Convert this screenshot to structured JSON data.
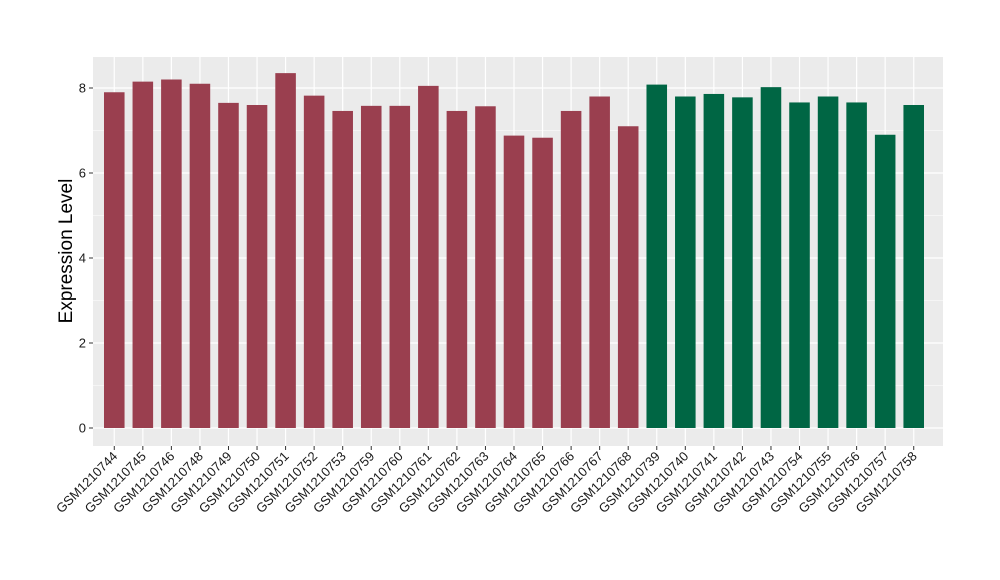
{
  "chart_data": {
    "type": "bar",
    "title": "",
    "xlabel": "",
    "ylabel": "Expression Level",
    "ylim": [
      0,
      8.8
    ],
    "yticks": [
      0,
      2,
      4,
      6,
      8
    ],
    "grid": true,
    "legend": "none",
    "categories": [
      "GSM1210744",
      "GSM1210745",
      "GSM1210746",
      "GSM1210748",
      "GSM1210749",
      "GSM1210750",
      "GSM1210751",
      "GSM1210752",
      "GSM1210753",
      "GSM1210759",
      "GSM1210760",
      "GSM1210761",
      "GSM1210762",
      "GSM1210763",
      "GSM1210764",
      "GSM1210765",
      "GSM1210766",
      "GSM1210767",
      "GSM1210768",
      "GSM1210739",
      "GSM1210740",
      "GSM1210741",
      "GSM1210742",
      "GSM1210743",
      "GSM1210754",
      "GSM1210755",
      "GSM1210756",
      "GSM1210757",
      "GSM1210758"
    ],
    "values": [
      7.9,
      8.15,
      8.2,
      8.1,
      7.65,
      7.6,
      8.35,
      7.82,
      7.46,
      7.58,
      7.58,
      8.05,
      7.46,
      7.57,
      6.88,
      6.83,
      7.46,
      7.8,
      7.1,
      8.08,
      7.8,
      7.86,
      7.78,
      8.02,
      7.66,
      7.8,
      7.66,
      6.9,
      7.6
    ],
    "group_colors": {
      "group1": "#9a3f4f",
      "group2": "#006644"
    },
    "bar_groups": [
      "group1",
      "group1",
      "group1",
      "group1",
      "group1",
      "group1",
      "group1",
      "group1",
      "group1",
      "group1",
      "group1",
      "group1",
      "group1",
      "group1",
      "group1",
      "group1",
      "group1",
      "group1",
      "group1",
      "group2",
      "group2",
      "group2",
      "group2",
      "group2",
      "group2",
      "group2",
      "group2",
      "group2",
      "group2"
    ],
    "panel_background": "#ebebeb",
    "grid_color": "#ffffff"
  }
}
